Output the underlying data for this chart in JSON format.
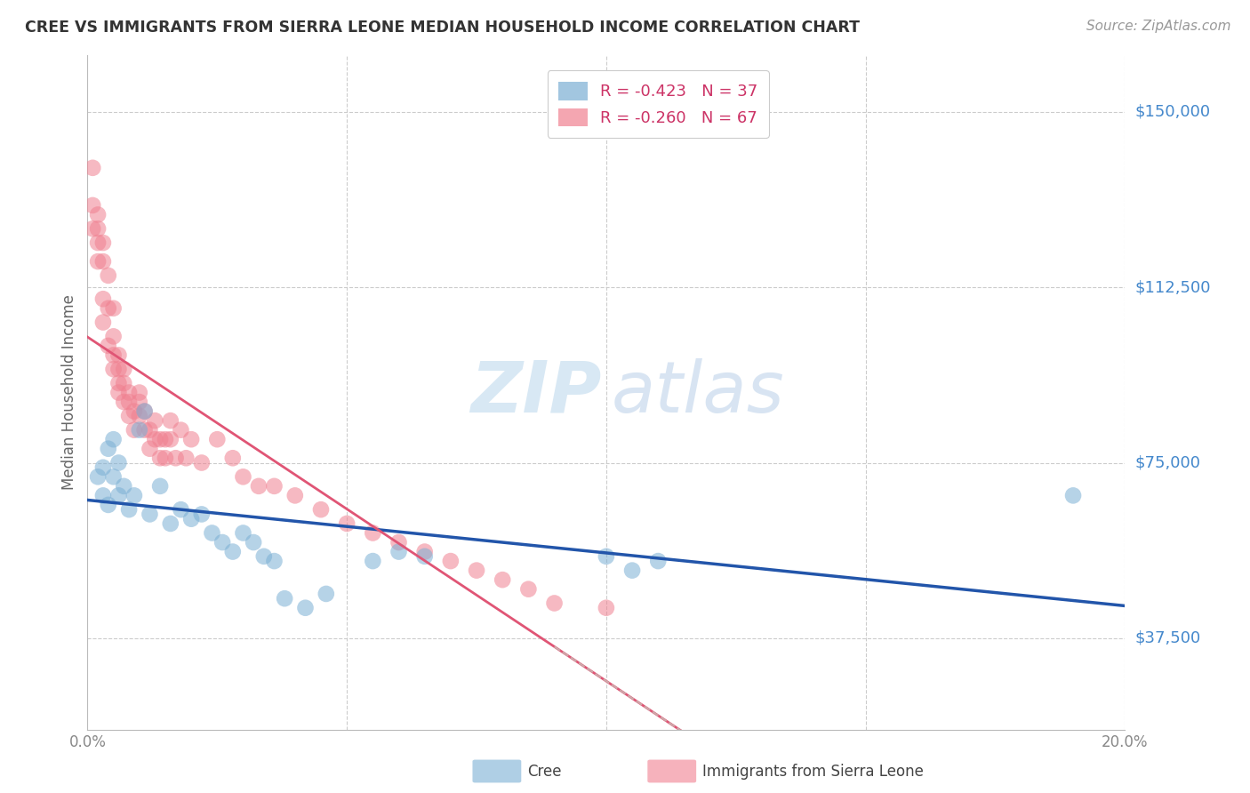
{
  "title": "CREE VS IMMIGRANTS FROM SIERRA LEONE MEDIAN HOUSEHOLD INCOME CORRELATION CHART",
  "source": "Source: ZipAtlas.com",
  "ylabel": "Median Household Income",
  "xlim": [
    0.0,
    0.2
  ],
  "ylim": [
    18000,
    162000
  ],
  "yticks": [
    37500,
    75000,
    112500,
    150000
  ],
  "ytick_labels": [
    "$37,500",
    "$75,000",
    "$112,500",
    "$150,000"
  ],
  "xticks": [
    0.0,
    0.05,
    0.1,
    0.15,
    0.2
  ],
  "xtick_labels": [
    "0.0%",
    "",
    "",
    "",
    "20.0%"
  ],
  "background_color": "#ffffff",
  "grid_color": "#cccccc",
  "cree_color": "#7bafd4",
  "sierra_leone_color": "#f08090",
  "cree_line_color": "#2255aa",
  "sierra_leone_line_color": "#e05575",
  "sierra_line_dash_color": "#ccaaaa",
  "legend_R_cree": "-0.423",
  "legend_N_cree": "37",
  "legend_R_sierra": "-0.260",
  "legend_N_sierra": "67",
  "cree_points_x": [
    0.002,
    0.003,
    0.003,
    0.004,
    0.004,
    0.005,
    0.005,
    0.006,
    0.006,
    0.007,
    0.008,
    0.009,
    0.01,
    0.011,
    0.012,
    0.014,
    0.016,
    0.018,
    0.02,
    0.022,
    0.024,
    0.026,
    0.028,
    0.03,
    0.032,
    0.034,
    0.036,
    0.038,
    0.042,
    0.046,
    0.055,
    0.06,
    0.065,
    0.1,
    0.105,
    0.11,
    0.19
  ],
  "cree_points_y": [
    72000,
    68000,
    74000,
    66000,
    78000,
    72000,
    80000,
    68000,
    75000,
    70000,
    65000,
    68000,
    82000,
    86000,
    64000,
    70000,
    62000,
    65000,
    63000,
    64000,
    60000,
    58000,
    56000,
    60000,
    58000,
    55000,
    54000,
    46000,
    44000,
    47000,
    54000,
    56000,
    55000,
    55000,
    52000,
    54000,
    68000
  ],
  "sierra_points_x": [
    0.001,
    0.001,
    0.001,
    0.002,
    0.002,
    0.002,
    0.002,
    0.003,
    0.003,
    0.003,
    0.003,
    0.004,
    0.004,
    0.004,
    0.005,
    0.005,
    0.005,
    0.005,
    0.006,
    0.006,
    0.006,
    0.006,
    0.007,
    0.007,
    0.007,
    0.008,
    0.008,
    0.008,
    0.009,
    0.009,
    0.01,
    0.01,
    0.01,
    0.011,
    0.011,
    0.012,
    0.012,
    0.013,
    0.013,
    0.014,
    0.014,
    0.015,
    0.015,
    0.016,
    0.016,
    0.017,
    0.018,
    0.019,
    0.02,
    0.022,
    0.025,
    0.028,
    0.03,
    0.033,
    0.036,
    0.04,
    0.045,
    0.05,
    0.055,
    0.06,
    0.065,
    0.07,
    0.075,
    0.08,
    0.085,
    0.09,
    0.1
  ],
  "sierra_points_y": [
    138000,
    130000,
    125000,
    125000,
    122000,
    118000,
    128000,
    118000,
    110000,
    122000,
    105000,
    115000,
    108000,
    100000,
    98000,
    95000,
    102000,
    108000,
    95000,
    92000,
    98000,
    90000,
    95000,
    88000,
    92000,
    90000,
    85000,
    88000,
    86000,
    82000,
    88000,
    85000,
    90000,
    82000,
    86000,
    82000,
    78000,
    80000,
    84000,
    80000,
    76000,
    80000,
    76000,
    80000,
    84000,
    76000,
    82000,
    76000,
    80000,
    75000,
    80000,
    76000,
    72000,
    70000,
    70000,
    68000,
    65000,
    62000,
    60000,
    58000,
    56000,
    54000,
    52000,
    50000,
    48000,
    45000,
    44000
  ]
}
